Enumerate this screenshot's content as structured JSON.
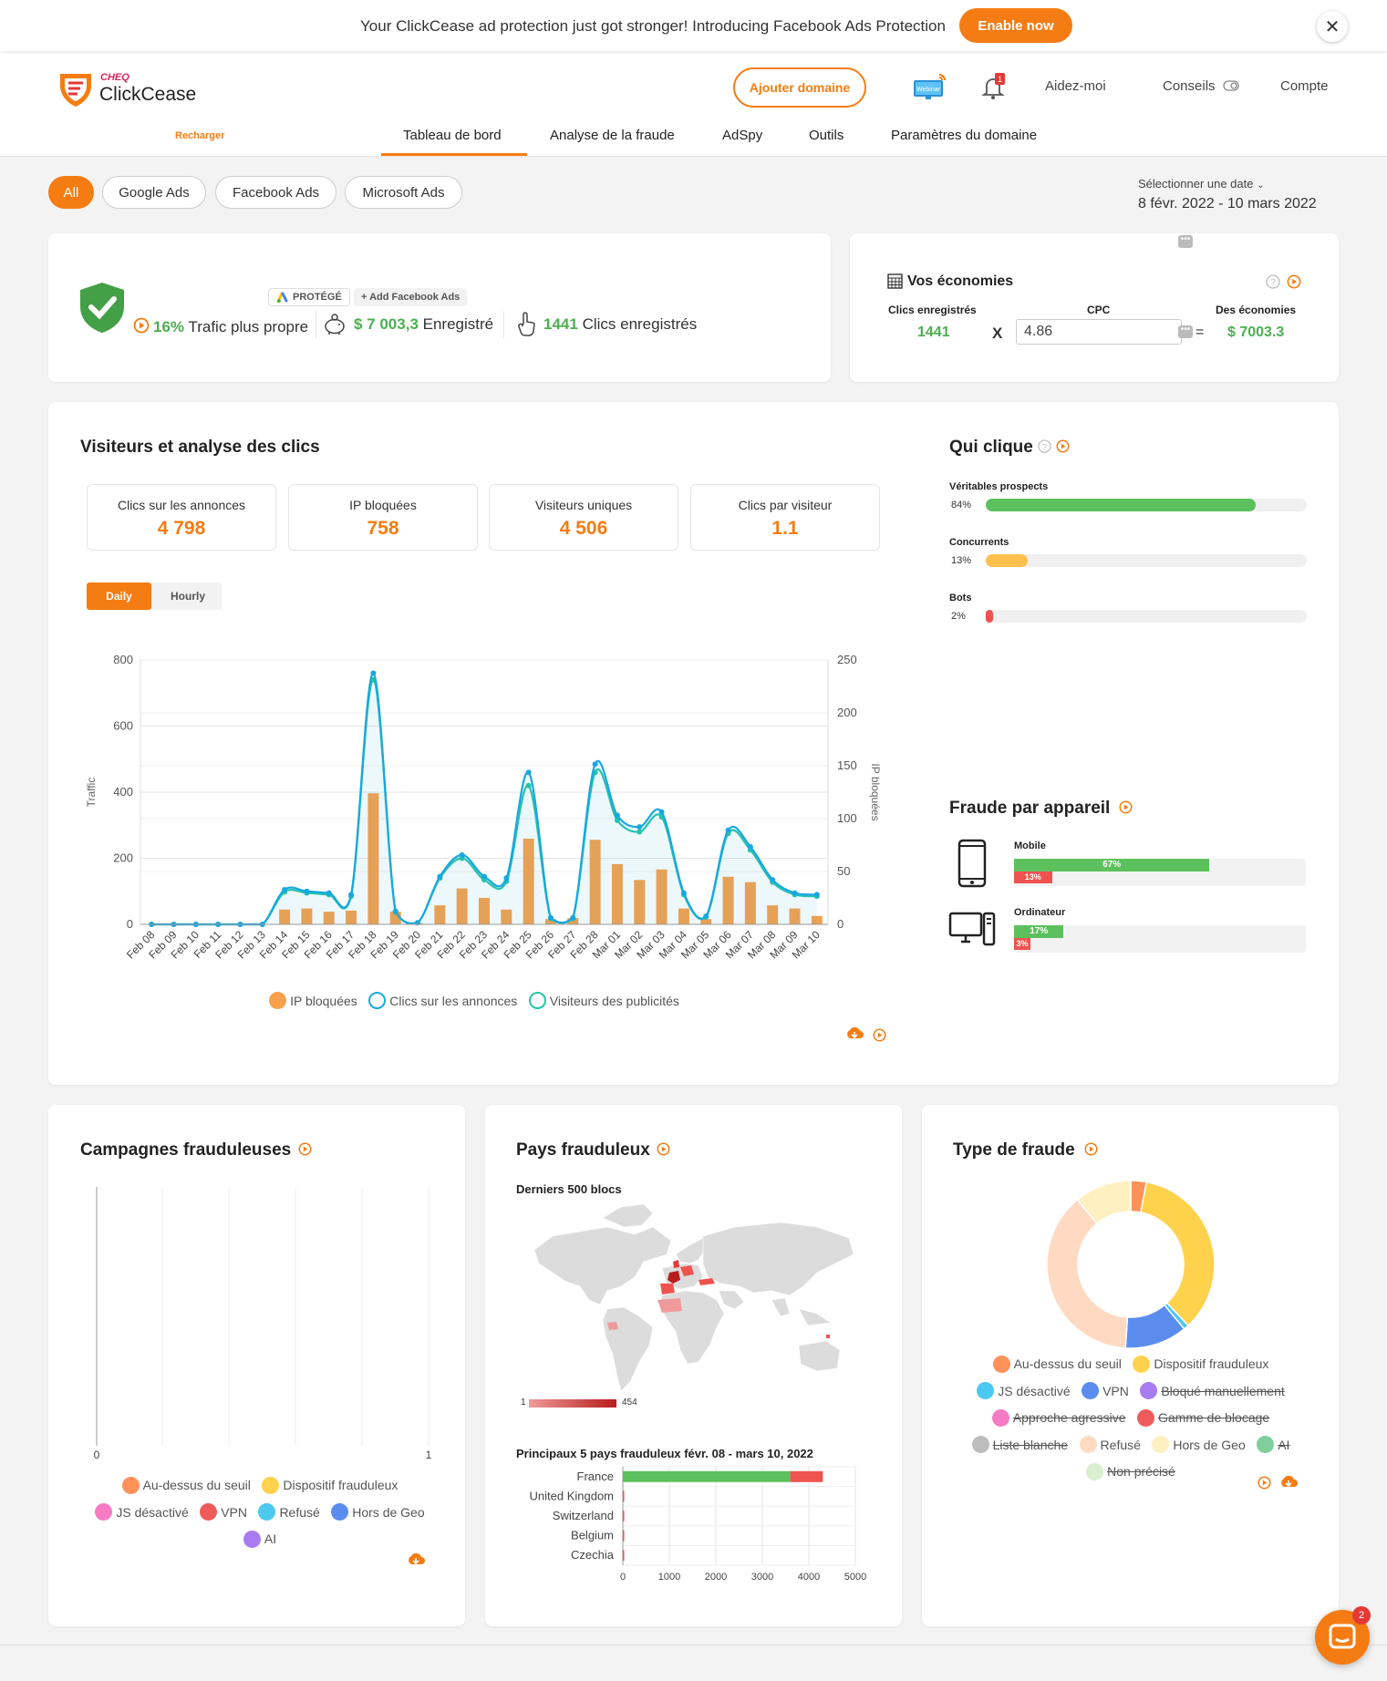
{
  "banner": {
    "text": "Your ClickCease ad protection just got stronger! Introducing Facebook Ads Protection",
    "button": "Enable now",
    "close_icon": "close-icon"
  },
  "header": {
    "logo_small": "CHEQ",
    "logo_name": "ClickCease",
    "recharger": "Recharger",
    "add_domain": "Ajouter domaine",
    "webinar_icon": "Webinar",
    "bell_badge": "1",
    "help": "Aidez-moi",
    "tips": "Conseils",
    "account": "Compte",
    "tabs": [
      "Tableau de bord",
      "Analyse de la fraude",
      "AdSpy",
      "Outils",
      "Paramètres du domaine"
    ]
  },
  "filters": {
    "chips": [
      "All",
      "Google Ads",
      "Facebook Ads",
      "Microsoft Ads"
    ],
    "date_label": "Sélectionner une date",
    "date_range": "8 févr. 2022 - 10 mars 2022"
  },
  "protection": {
    "protected_badge": "PROTÉGÉ",
    "add_facebook": "+ Add Facebook Ads",
    "traffic_pct": "16%",
    "traffic_label": "Trafic plus propre",
    "saved_amount": "$ 7 003,3",
    "saved_label": "Enregistré",
    "clicks_saved": "1441",
    "clicks_label": "Clics enregistrés"
  },
  "savings": {
    "title": "Vos économies",
    "col1_label": "Clics enregistrés",
    "col1_value": "1441",
    "multiply": "X",
    "cpc_label": "CPC",
    "cpc_value": "4.86",
    "equals": "=",
    "col3_label": "Des économies",
    "col3_value": "$ 7003.3"
  },
  "visitors": {
    "title": "Visiteurs et analyse des clics",
    "stats": [
      {
        "label": "Clics sur les annonces",
        "value": "4 798"
      },
      {
        "label": "IP bloquées",
        "value": "758"
      },
      {
        "label": "Visiteurs uniques",
        "value": "4 506"
      },
      {
        "label": "Clics par visiteur",
        "value": "1.1"
      }
    ],
    "toggle": [
      "Daily",
      "Hourly"
    ]
  },
  "who_clicks": {
    "title": "Qui clique",
    "items": [
      {
        "label": "Véritables prospects",
        "pct": "84%",
        "value": 0.84,
        "color": "#5cc15c"
      },
      {
        "label": "Concurrents",
        "pct": "13%",
        "value": 0.13,
        "color": "#ffc04d"
      },
      {
        "label": "Bots",
        "pct": "2%",
        "value": 0.02,
        "color": "#ef5350"
      }
    ]
  },
  "device_fraud": {
    "title": "Fraude par appareil",
    "items": [
      {
        "label": "Mobile",
        "green_pct": "67%",
        "green": 0.67,
        "red_pct": "13%",
        "red": 0.13
      },
      {
        "label": "Ordinateur",
        "green_pct": "17%",
        "green": 0.17,
        "red_pct": "3%",
        "red": 0.03
      }
    ]
  },
  "campaigns": {
    "title": "Campagnes frauduleuses",
    "x_ticks": [
      "0",
      "1"
    ],
    "legend": [
      {
        "label": "Au-dessus du seuil",
        "color": "#ff9159"
      },
      {
        "label": "Dispositif frauduleux",
        "color": "#ffd24d"
      },
      {
        "label": "JS désactivé",
        "color": "#f57cc4"
      },
      {
        "label": "VPN",
        "color": "#ef5a5a"
      },
      {
        "label": "Refusé",
        "color": "#4cc9f0"
      },
      {
        "label": "Hors de Geo",
        "color": "#5b8def"
      },
      {
        "label": "AI",
        "color": "#a77cf0"
      }
    ]
  },
  "countries": {
    "title": "Pays frauduleux",
    "subtitle": "Derniers 500 blocs",
    "scale_min": "1",
    "scale_max": "454",
    "top5_title": "Principaux 5 pays frauduleux févr. 08 - mars 10, 2022"
  },
  "fraud_type": {
    "title": "Type de fraude",
    "legend": [
      {
        "label": "Au-dessus du seuil",
        "color": "#ff9159",
        "strike": false
      },
      {
        "label": "Dispositif frauduleux",
        "color": "#ffd24d",
        "strike": false
      },
      {
        "label": "JS désactivé",
        "color": "#4cc9f0",
        "strike": false
      },
      {
        "label": "VPN",
        "color": "#5b8def",
        "strike": false
      },
      {
        "label": "Bloqué manuellement",
        "color": "#a77cf0",
        "strike": true
      },
      {
        "label": "Approche agressive",
        "color": "#f57cc4",
        "strike": true
      },
      {
        "label": "Gamme de blocage",
        "color": "#ef5a5a",
        "strike": true
      },
      {
        "label": "Liste blanche",
        "color": "#bdbdbd",
        "strike": true
      },
      {
        "label": "Refusé",
        "color": "#ffd9c2",
        "strike": false
      },
      {
        "label": "Hors de Geo",
        "color": "#fff0c2",
        "strike": false
      },
      {
        "label": "AI",
        "color": "#7ecf9c",
        "strike": true
      },
      {
        "label": "Non précisé",
        "color": "#d8efd0",
        "strike": true
      }
    ]
  },
  "chat_badge": "2",
  "chart_data": [
    {
      "type": "bar",
      "title": "",
      "ylabel": "Traffic",
      "y2label": "IP bloquées",
      "ylim": [
        0,
        800
      ],
      "y2lim": [
        0,
        250
      ],
      "yticks": [
        "0",
        "200",
        "400",
        "600",
        "800"
      ],
      "y2ticks": [
        "0",
        "50",
        "100",
        "150",
        "200",
        "250"
      ],
      "categories": [
        "Feb 08",
        "Feb 09",
        "Feb 10",
        "Feb 11",
        "Feb 12",
        "Feb 13",
        "Feb 14",
        "Feb 15",
        "Feb 16",
        "Feb 17",
        "Feb 18",
        "Feb 19",
        "Feb 20",
        "Feb 21",
        "Feb 22",
        "Feb 23",
        "Feb 24",
        "Feb 25",
        "Feb 26",
        "Feb 27",
        "Feb 28",
        "Mar 01",
        "Mar 02",
        "Mar 03",
        "Mar 04",
        "Mar 05",
        "Mar 06",
        "Mar 07",
        "Mar 08",
        "Mar 09",
        "Mar 10"
      ],
      "series": [
        {
          "name": "IP bloquées",
          "chart": "bar",
          "axis": "right",
          "color": "#f7a14c",
          "values": [
            0,
            0,
            0,
            0,
            0,
            0,
            14,
            15,
            12,
            13,
            124,
            12,
            1,
            18,
            34,
            25,
            14,
            81,
            5,
            6,
            80,
            57,
            42,
            52,
            15,
            5,
            45,
            40,
            18,
            15,
            8
          ]
        },
        {
          "name": "Clics sur les annonces",
          "chart": "line",
          "axis": "left",
          "color": "#1aa7e0",
          "values": [
            0,
            0,
            0,
            0,
            0,
            0,
            105,
            100,
            95,
            90,
            760,
            40,
            5,
            145,
            210,
            145,
            140,
            460,
            20,
            20,
            485,
            330,
            295,
            340,
            95,
            25,
            285,
            235,
            135,
            95,
            90
          ]
        },
        {
          "name": "Visiteurs des publicités",
          "chart": "line",
          "axis": "left",
          "color": "#26c6a8",
          "values": [
            0,
            0,
            0,
            0,
            0,
            0,
            98,
            95,
            90,
            85,
            740,
            38,
            5,
            140,
            200,
            135,
            130,
            420,
            18,
            18,
            460,
            315,
            280,
            325,
            90,
            22,
            275,
            225,
            128,
            90,
            85
          ]
        }
      ]
    },
    {
      "type": "bar",
      "title": "Principaux 5 pays frauduleux févr. 08 - mars 10, 2022",
      "categories": [
        "France",
        "United Kingdom",
        "Switzerland",
        "Belgium",
        "Czechia"
      ],
      "xlim": [
        0,
        5000
      ],
      "xticks": [
        "0",
        "1000",
        "2000",
        "3000",
        "4000",
        "5000"
      ],
      "series": [
        {
          "name": "green",
          "color": "#5cc15c",
          "values": [
            3600,
            0,
            0,
            0,
            0
          ]
        },
        {
          "name": "red",
          "color": "#ef5350",
          "values": [
            700,
            10,
            8,
            6,
            5
          ]
        }
      ]
    },
    {
      "type": "pie",
      "title": "",
      "series": [
        {
          "label": "Au-dessus du seuil",
          "value": 3,
          "color": "#ff9159"
        },
        {
          "label": "Dispositif frauduleux",
          "value": 35,
          "color": "#ffd24d"
        },
        {
          "label": "JS désactivé",
          "value": 1,
          "color": "#4cc9f0"
        },
        {
          "label": "VPN",
          "value": 12,
          "color": "#5b8def"
        },
        {
          "label": "Refusé",
          "value": 38,
          "color": "#ffd9c2"
        },
        {
          "label": "Hors de Geo",
          "value": 11,
          "color": "#fff0c2"
        }
      ]
    }
  ]
}
